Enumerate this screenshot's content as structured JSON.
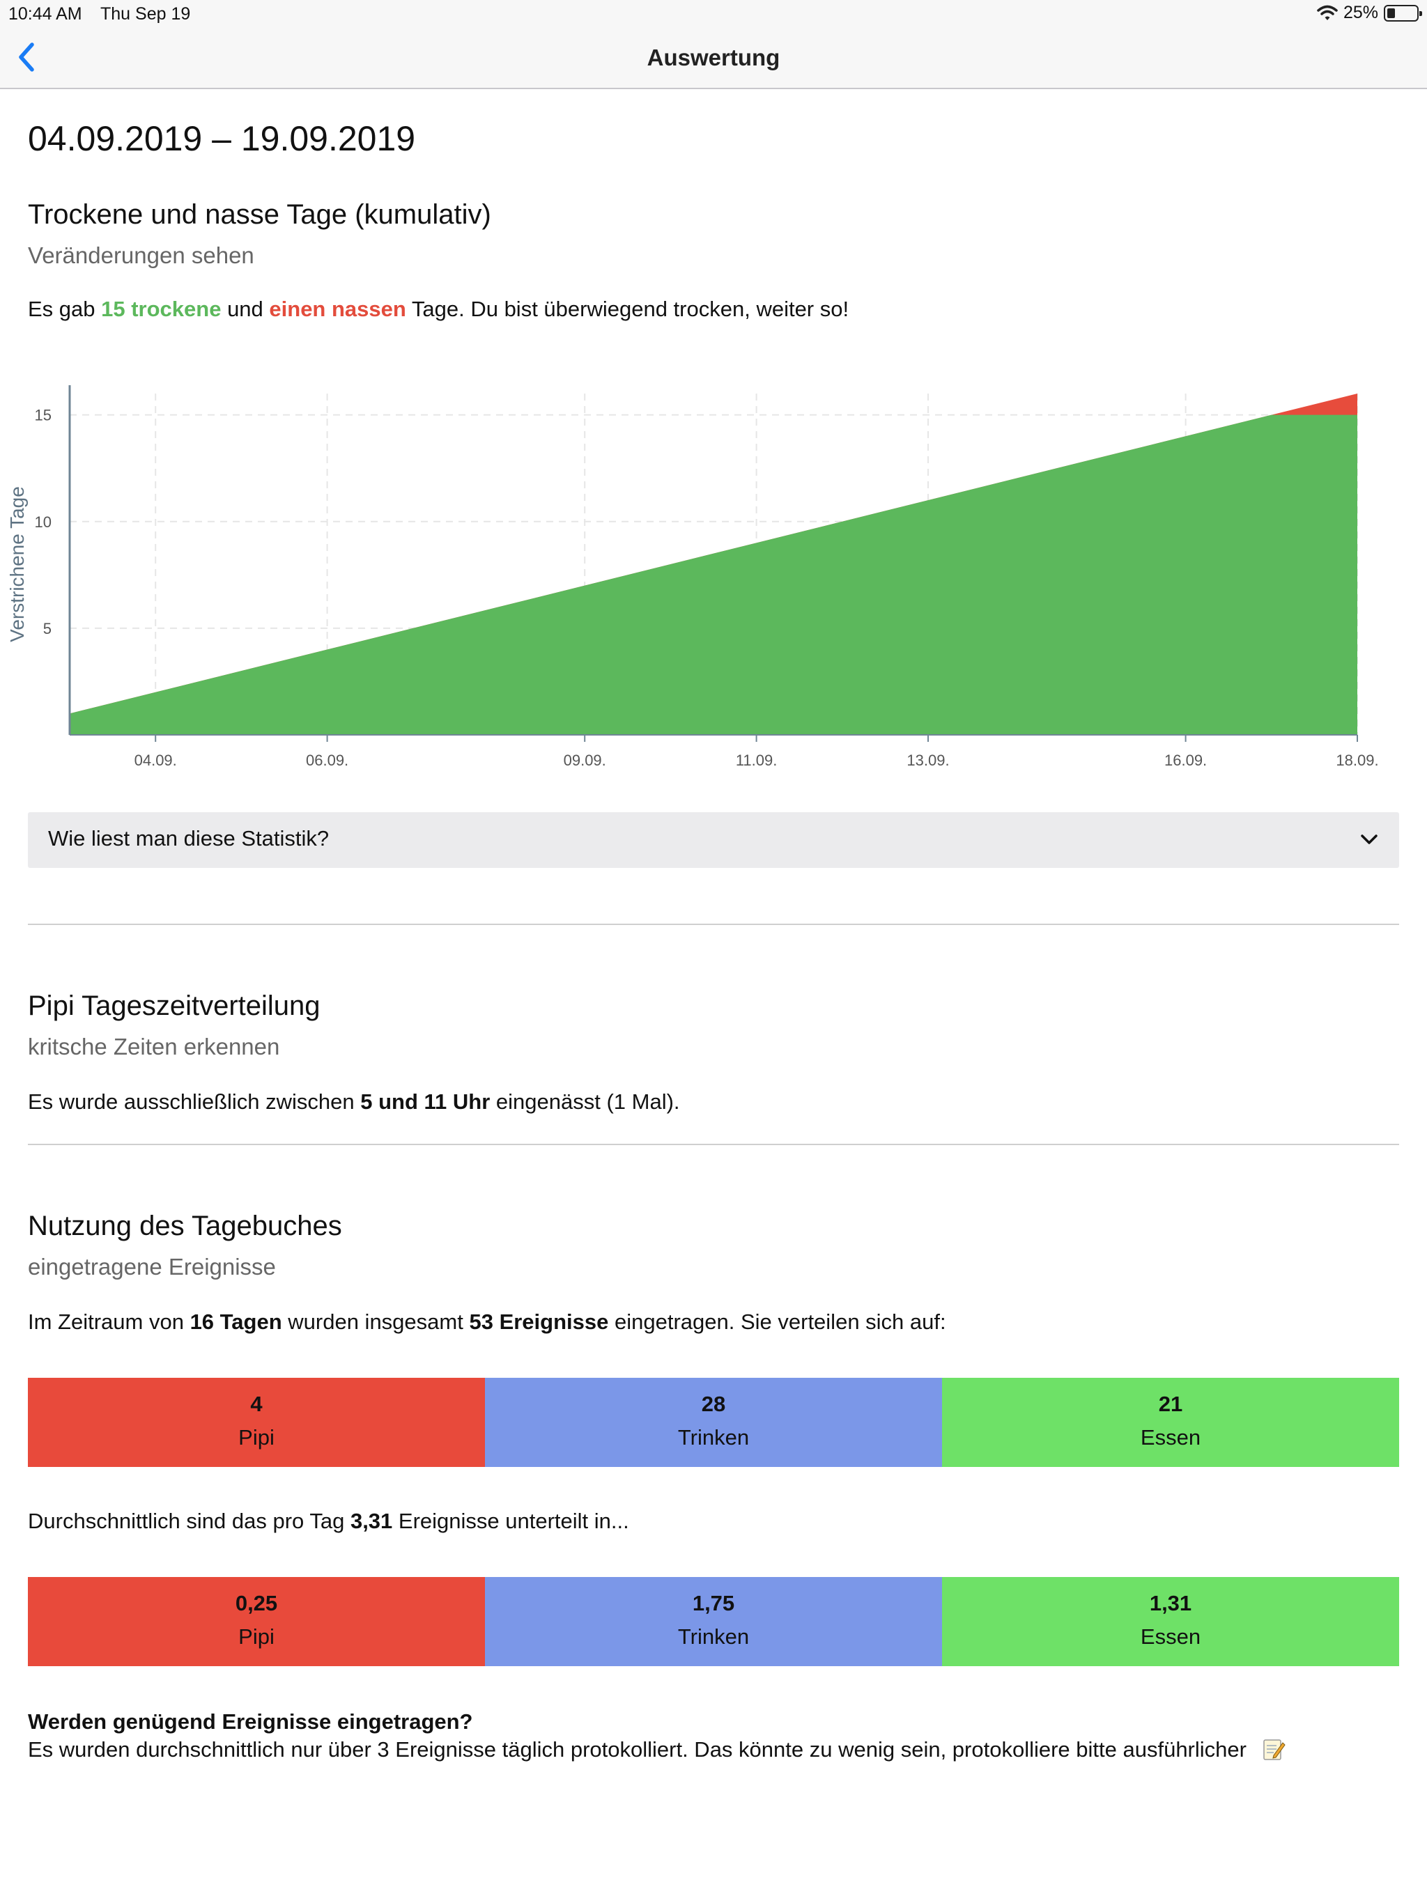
{
  "status_bar": {
    "time": "10:44 AM",
    "date": "Thu Sep 19",
    "battery": "25%",
    "battery_level": 0.25
  },
  "nav": {
    "title": "Auswertung"
  },
  "date_range": "04.09.2019 – 19.09.2019",
  "dry_wet": {
    "title": "Trockene und nasse Tage (kumulativ)",
    "subtitle": "Veränderungen sehen",
    "text_pre": "Es gab ",
    "dry_text": "15 trockene",
    "text_mid": " und ",
    "wet_text": "einen nassen",
    "text_post": " Tage. Du bist überwiegend trocken, weiter so!"
  },
  "chart_data": {
    "type": "area",
    "ylabel": "Verstrichene Tage",
    "xlabel": "",
    "x": [
      "03.09.",
      "04.09.",
      "05.09.",
      "06.09.",
      "07.09.",
      "08.09.",
      "09.09.",
      "10.09.",
      "11.09.",
      "12.09.",
      "13.09.",
      "14.09.",
      "15.09.",
      "16.09.",
      "17.09.",
      "18.09."
    ],
    "x_tick_labels": [
      "04.09.",
      "06.09.",
      "09.09.",
      "11.09.",
      "13.09.",
      "16.09.",
      "18.09."
    ],
    "x_tick_positions": [
      "04.09.",
      "06.09.",
      "09.09.",
      "11.09.",
      "13.09.",
      "16.09.",
      "18.09."
    ],
    "y_ticks": [
      5,
      10,
      15
    ],
    "ylim": [
      0,
      16
    ],
    "grid": true,
    "series": [
      {
        "name": "trocken",
        "color": "#5cb85c",
        "values": [
          1,
          2,
          3,
          4,
          5,
          6,
          7,
          8,
          9,
          10,
          11,
          12,
          13,
          14,
          15,
          15
        ]
      },
      {
        "name": "nass",
        "color": "#e74c3c",
        "values": [
          1,
          2,
          3,
          4,
          5,
          6,
          7,
          8,
          9,
          10,
          11,
          12,
          13,
          14,
          15,
          16
        ]
      }
    ]
  },
  "accordion": {
    "label": "Wie liest man diese Statistik?"
  },
  "pipi": {
    "title": "Pipi Tageszeitverteilung",
    "subtitle": "kritsche Zeiten erkennen",
    "text_pre": "Es wurde ausschließlich zwischen ",
    "text_bold": "5 und 11 Uhr",
    "text_post": " eingenässt (1 Mal)."
  },
  "usage": {
    "title": "Nutzung des Tagebuches",
    "subtitle": "eingetragene Ereignisse",
    "p1_a": "Im Zeitraum von ",
    "p1_b": "16 Tagen",
    "p1_c": " wurden insgesamt ",
    "p1_d": "53 Ereignisse",
    "p1_e": " eingetragen. Sie verteilen sich auf:",
    "totals": [
      {
        "value": "4",
        "label": "Pipi",
        "color": "#e84a3b"
      },
      {
        "value": "28",
        "label": "Trinken",
        "color": "#7b97e8"
      },
      {
        "value": "21",
        "label": "Essen",
        "color": "#6ee167"
      }
    ],
    "p2_a": "Durchschnittlich sind das pro Tag ",
    "p2_b": "3,31",
    "p2_c": " Ereignisse unterteilt in...",
    "averages": [
      {
        "value": "0,25",
        "label": "Pipi"
      },
      {
        "value": "1,75",
        "label": "Trinken"
      },
      {
        "value": "1,31",
        "label": "Essen"
      }
    ],
    "question": "Werden genügend Ereignisse eingetragen?",
    "answer": "Es wurden durchschnittlich nur über 3 Ereignisse täglich protokolliert. Das könnte zu wenig sein, protokolliere bitte ausführlicher",
    "answer_icon": "memo-icon"
  }
}
